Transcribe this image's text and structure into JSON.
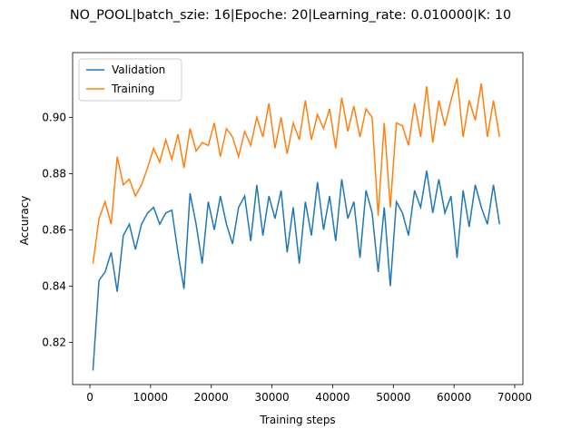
{
  "chart_data": {
    "type": "line",
    "title": "NO_POOL|batch_szie: 16|Epoche: 20|Learning_rate: 0.010000|K: 10",
    "xlabel": "Training steps",
    "ylabel": "Accuracy",
    "x": [
      500,
      1500,
      2500,
      3500,
      4500,
      5500,
      6500,
      7500,
      8500,
      9500,
      10500,
      11500,
      12500,
      13500,
      14500,
      15500,
      16500,
      17500,
      18500,
      19500,
      20500,
      21500,
      22500,
      23500,
      24500,
      25500,
      26500,
      27500,
      28500,
      29500,
      30500,
      31500,
      32500,
      33500,
      34500,
      35500,
      36500,
      37500,
      38500,
      39500,
      40500,
      41500,
      42500,
      43500,
      44500,
      45500,
      46500,
      47500,
      48500,
      49500,
      50500,
      51500,
      52500,
      53500,
      54500,
      55500,
      56500,
      57500,
      58500,
      59500,
      60500,
      61500,
      62500,
      63500,
      64500,
      65500,
      66500,
      67500
    ],
    "series": [
      {
        "name": "Validation",
        "color": "#1f77b4",
        "values": [
          0.81,
          0.842,
          0.845,
          0.852,
          0.838,
          0.858,
          0.862,
          0.853,
          0.862,
          0.866,
          0.868,
          0.862,
          0.866,
          0.867,
          0.852,
          0.839,
          0.873,
          0.862,
          0.848,
          0.87,
          0.86,
          0.872,
          0.862,
          0.855,
          0.868,
          0.872,
          0.856,
          0.876,
          0.858,
          0.872,
          0.864,
          0.874,
          0.852,
          0.868,
          0.848,
          0.87,
          0.858,
          0.877,
          0.86,
          0.872,
          0.856,
          0.878,
          0.864,
          0.87,
          0.85,
          0.874,
          0.866,
          0.845,
          0.868,
          0.84,
          0.87,
          0.866,
          0.858,
          0.874,
          0.868,
          0.881,
          0.866,
          0.878,
          0.866,
          0.872,
          0.85,
          0.874,
          0.861,
          0.876,
          0.868,
          0.862,
          0.876,
          0.862
        ]
      },
      {
        "name": "Training",
        "color": "#ff7f0e",
        "values": [
          0.848,
          0.864,
          0.87,
          0.862,
          0.886,
          0.876,
          0.878,
          0.872,
          0.876,
          0.882,
          0.889,
          0.884,
          0.892,
          0.885,
          0.894,
          0.882,
          0.896,
          0.888,
          0.891,
          0.89,
          0.898,
          0.886,
          0.896,
          0.893,
          0.886,
          0.895,
          0.89,
          0.9,
          0.893,
          0.905,
          0.889,
          0.9,
          0.887,
          0.898,
          0.892,
          0.906,
          0.892,
          0.901,
          0.896,
          0.903,
          0.889,
          0.907,
          0.895,
          0.904,
          0.893,
          0.903,
          0.9,
          0.865,
          0.898,
          0.868,
          0.898,
          0.897,
          0.89,
          0.905,
          0.893,
          0.911,
          0.891,
          0.906,
          0.897,
          0.906,
          0.914,
          0.893,
          0.906,
          0.899,
          0.912,
          0.893,
          0.906,
          0.893
        ]
      }
    ],
    "xlim": [
      -2850,
      71350
    ],
    "ylim": [
      0.805,
      0.923
    ],
    "xticks": [
      0,
      10000,
      20000,
      30000,
      40000,
      50000,
      60000,
      70000
    ],
    "yticks": [
      0.82,
      0.84,
      0.86,
      0.88,
      {
        "value": 0.9,
        "label": "0.90"
      }
    ],
    "legend": "upper left"
  }
}
